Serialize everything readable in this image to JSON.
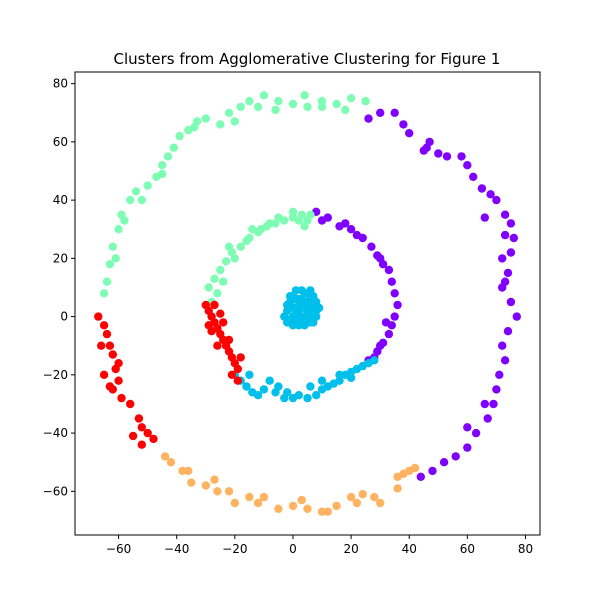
{
  "chart_data": {
    "type": "scatter",
    "title": "Clusters from Agglomerative Clustering for Figure 1",
    "xlabel": "",
    "ylabel": "",
    "xlim": [
      -75,
      85
    ],
    "ylim": [
      -75,
      84
    ],
    "xticks": [
      -60,
      -40,
      -20,
      0,
      20,
      40,
      60,
      80
    ],
    "yticks": [
      -60,
      -40,
      -20,
      0,
      20,
      40,
      60,
      80
    ],
    "grid": false,
    "legend": "none",
    "series": [
      {
        "color": "#8000ff",
        "points": [
          [
            26,
            68
          ],
          [
            30,
            70
          ],
          [
            35,
            70
          ],
          [
            38,
            66
          ],
          [
            40,
            63
          ],
          [
            45,
            57
          ],
          [
            47,
            60
          ],
          [
            50,
            56
          ],
          [
            53,
            55
          ],
          [
            58,
            55
          ],
          [
            60,
            52
          ],
          [
            62,
            48
          ],
          [
            65,
            44
          ],
          [
            68,
            42
          ],
          [
            70,
            40
          ],
          [
            73,
            35
          ],
          [
            75,
            32
          ],
          [
            73,
            28
          ],
          [
            76,
            27
          ],
          [
            75,
            22
          ],
          [
            72,
            20
          ],
          [
            74,
            15
          ],
          [
            72,
            10
          ],
          [
            75,
            5
          ],
          [
            77,
            0
          ],
          [
            74,
            -5
          ],
          [
            72,
            -10
          ],
          [
            73,
            -15
          ],
          [
            71,
            -20
          ],
          [
            70,
            -25
          ],
          [
            69,
            -30
          ],
          [
            67,
            -35
          ],
          [
            63,
            -40
          ],
          [
            60,
            -45
          ],
          [
            56,
            -48
          ],
          [
            52,
            -50
          ],
          [
            48,
            -53
          ],
          [
            44,
            -55
          ],
          [
            60,
            -38
          ],
          [
            66,
            -30
          ],
          [
            73,
            12
          ],
          [
            66,
            34
          ],
          [
            46,
            58
          ],
          [
            8,
            36
          ],
          [
            12,
            34
          ],
          [
            16,
            31
          ],
          [
            20,
            30
          ],
          [
            24,
            27
          ],
          [
            27,
            24
          ],
          [
            29,
            21
          ],
          [
            31,
            18
          ],
          [
            33,
            16
          ],
          [
            34,
            12
          ],
          [
            35,
            8
          ],
          [
            36,
            4
          ],
          [
            35,
            0
          ],
          [
            34,
            -3
          ],
          [
            33,
            -6
          ],
          [
            31,
            -9
          ],
          [
            29,
            -12
          ],
          [
            26,
            -15
          ],
          [
            28,
            -14
          ],
          [
            32,
            -2
          ],
          [
            30,
            20
          ],
          [
            22,
            28
          ],
          [
            18,
            32
          ],
          [
            10,
            33
          ],
          [
            30,
            -10
          ]
        ]
      },
      {
        "color": "#7efcb4",
        "points": [
          [
            -64,
            12
          ],
          [
            -63,
            18
          ],
          [
            -62,
            24
          ],
          [
            -60,
            30
          ],
          [
            -59,
            35
          ],
          [
            -56,
            40
          ],
          [
            -54,
            43
          ],
          [
            -50,
            45
          ],
          [
            -47,
            48
          ],
          [
            -45,
            52
          ],
          [
            -43,
            55
          ],
          [
            -41,
            58
          ],
          [
            -39,
            62
          ],
          [
            -36,
            64
          ],
          [
            -33,
            67
          ],
          [
            -30,
            68
          ],
          [
            -25,
            66
          ],
          [
            -22,
            70
          ],
          [
            -18,
            72
          ],
          [
            -15,
            74
          ],
          [
            -10,
            76
          ],
          [
            -5,
            74
          ],
          [
            0,
            73
          ],
          [
            5,
            72
          ],
          [
            10,
            74
          ],
          [
            15,
            73
          ],
          [
            20,
            75
          ],
          [
            25,
            74
          ],
          [
            -12,
            72
          ],
          [
            -6,
            71
          ],
          [
            4,
            76
          ],
          [
            18,
            71
          ],
          [
            -52,
            40
          ],
          [
            -45,
            49
          ],
          [
            -58,
            33
          ],
          [
            -61,
            20
          ],
          [
            -65,
            8
          ],
          [
            -34,
            65
          ],
          [
            -20,
            67
          ],
          [
            10,
            72
          ],
          [
            -28,
            5
          ],
          [
            -29,
            10
          ],
          [
            -27,
            13
          ],
          [
            -25,
            16
          ],
          [
            -23,
            19
          ],
          [
            -21,
            22
          ],
          [
            -18,
            24
          ],
          [
            -15,
            27
          ],
          [
            -12,
            29
          ],
          [
            -9,
            31
          ],
          [
            -6,
            32
          ],
          [
            -3,
            33
          ],
          [
            0,
            34
          ],
          [
            3,
            35
          ],
          [
            6,
            35
          ],
          [
            -26,
            8
          ],
          [
            -24,
            12
          ],
          [
            -20,
            20
          ],
          [
            -16,
            26
          ],
          [
            -11,
            30
          ],
          [
            -5,
            34
          ],
          [
            2,
            33
          ],
          [
            5,
            33
          ],
          [
            -22,
            24
          ],
          [
            -14,
            30
          ],
          [
            -8,
            32
          ],
          [
            0,
            36
          ],
          [
            4,
            31
          ]
        ]
      },
      {
        "color": "#00bfeb",
        "points": [
          [
            -20,
            -20
          ],
          [
            -18,
            -22
          ],
          [
            -16,
            -24
          ],
          [
            -14,
            -26
          ],
          [
            -12,
            -27
          ],
          [
            -10,
            -25
          ],
          [
            -8,
            -22
          ],
          [
            -5,
            -24
          ],
          [
            -2,
            -26
          ],
          [
            0,
            -28
          ],
          [
            2,
            -27
          ],
          [
            5,
            -28
          ],
          [
            8,
            -27
          ],
          [
            10,
            -25
          ],
          [
            12,
            -24
          ],
          [
            14,
            -23
          ],
          [
            16,
            -22
          ],
          [
            18,
            -20
          ],
          [
            20,
            -19
          ],
          [
            22,
            -18
          ],
          [
            24,
            -17
          ],
          [
            26,
            -16
          ],
          [
            28,
            -15
          ],
          [
            -15,
            -20
          ],
          [
            -3,
            -28
          ],
          [
            6,
            -24
          ],
          [
            16,
            -20
          ],
          [
            20,
            -21
          ],
          [
            -6,
            -26
          ],
          [
            10,
            -22
          ],
          [
            0,
            0
          ],
          [
            1,
            2
          ],
          [
            2,
            4
          ],
          [
            3,
            6
          ],
          [
            4,
            8
          ],
          [
            5,
            5
          ],
          [
            6,
            3
          ],
          [
            7,
            1
          ],
          [
            -1,
            -1
          ],
          [
            0,
            3
          ],
          [
            1,
            -1
          ],
          [
            2,
            1
          ],
          [
            3,
            -2
          ],
          [
            4,
            0
          ],
          [
            5,
            -1
          ],
          [
            6,
            6
          ],
          [
            7,
            4
          ],
          [
            8,
            2
          ],
          [
            -2,
            2
          ],
          [
            -1,
            5
          ],
          [
            0,
            7
          ],
          [
            1,
            9
          ],
          [
            2,
            6
          ],
          [
            3,
            3
          ],
          [
            4,
            -1
          ],
          [
            5,
            2
          ],
          [
            6,
            0
          ],
          [
            7,
            -2
          ],
          [
            8,
            5
          ],
          [
            9,
            3
          ],
          [
            -3,
            0
          ],
          [
            -2,
            -2
          ],
          [
            0,
            -3
          ],
          [
            2,
            -3
          ],
          [
            4,
            -3
          ],
          [
            6,
            -2
          ],
          [
            8,
            0
          ],
          [
            1,
            6
          ],
          [
            3,
            9
          ],
          [
            5,
            8
          ],
          [
            7,
            7
          ],
          [
            -1,
            7
          ],
          [
            2,
            -1
          ],
          [
            4,
            4
          ],
          [
            6,
            9
          ],
          [
            -2,
            4
          ]
        ]
      },
      {
        "color": "#ffb360",
        "points": [
          [
            -44,
            -48
          ],
          [
            -42,
            -50
          ],
          [
            -38,
            -53
          ],
          [
            -35,
            -57
          ],
          [
            -30,
            -58
          ],
          [
            -27,
            -56
          ],
          [
            -22,
            -60
          ],
          [
            -20,
            -64
          ],
          [
            -15,
            -62
          ],
          [
            -10,
            -62
          ],
          [
            -5,
            -66
          ],
          [
            0,
            -65
          ],
          [
            5,
            -66
          ],
          [
            10,
            -67
          ],
          [
            15,
            -65
          ],
          [
            20,
            -62
          ],
          [
            24,
            -61
          ],
          [
            28,
            -62
          ],
          [
            30,
            -64
          ],
          [
            36,
            -59
          ],
          [
            38,
            -54
          ],
          [
            40,
            -53
          ],
          [
            42,
            -52
          ],
          [
            -36,
            -53
          ],
          [
            -26,
            -60
          ],
          [
            -12,
            -64
          ],
          [
            3,
            -63
          ],
          [
            12,
            -67
          ],
          [
            22,
            -64
          ],
          [
            36,
            -55
          ]
        ]
      },
      {
        "color": "#ff0000",
        "points": [
          [
            -67,
            0
          ],
          [
            -65,
            -3
          ],
          [
            -64,
            -6
          ],
          [
            -63,
            -10
          ],
          [
            -62,
            -13
          ],
          [
            -61,
            -18
          ],
          [
            -60,
            -22
          ],
          [
            -59,
            -28
          ],
          [
            -56,
            -30
          ],
          [
            -53,
            -35
          ],
          [
            -52,
            -38
          ],
          [
            -50,
            -40
          ],
          [
            -48,
            -42
          ],
          [
            -55,
            -41
          ],
          [
            -52,
            -44
          ],
          [
            -62,
            -25
          ],
          [
            -65,
            -20
          ],
          [
            -66,
            -10
          ],
          [
            -63,
            -24
          ],
          [
            -60,
            -16
          ],
          [
            -30,
            4
          ],
          [
            -29,
            2
          ],
          [
            -28,
            0
          ],
          [
            -27,
            -2
          ],
          [
            -26,
            -4
          ],
          [
            -25,
            -6
          ],
          [
            -24,
            -8
          ],
          [
            -23,
            -10
          ],
          [
            -22,
            -12
          ],
          [
            -21,
            -14
          ],
          [
            -20,
            -16
          ],
          [
            -19,
            -18
          ],
          [
            -21,
            -20
          ],
          [
            -19,
            -22
          ],
          [
            -27,
            4
          ],
          [
            -29,
            -3
          ],
          [
            -24,
            -2
          ],
          [
            -22,
            -8
          ],
          [
            -26,
            -10
          ],
          [
            -18,
            -14
          ],
          [
            -28,
            -5
          ],
          [
            -25,
            1
          ]
        ]
      }
    ]
  }
}
